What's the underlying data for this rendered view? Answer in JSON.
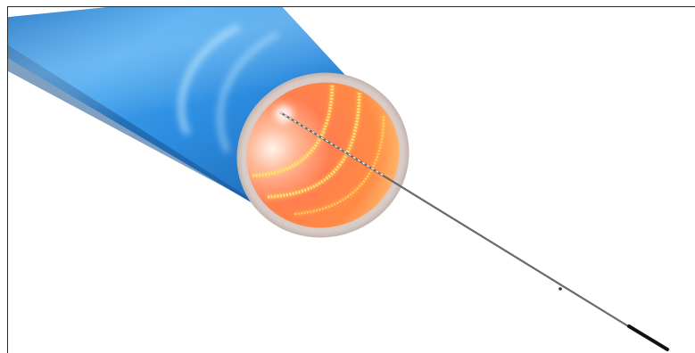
{
  "image": {
    "subject": "fiber-optic-cable-illustration",
    "colors": {
      "jacket": "#2f92e0",
      "jacket_highlight": "#8fd0ff",
      "jacket_shadow": "#1d5fa8",
      "core": "#ff7a4a",
      "core_center": "#ffe3c9",
      "glow_rings": "#ffe36a",
      "rim": "#c7b9b5",
      "fiber": "#5a5a5a",
      "fiber_tip": "#111111",
      "frame_border": "#2a2a2a",
      "background": "#ffffff"
    }
  }
}
